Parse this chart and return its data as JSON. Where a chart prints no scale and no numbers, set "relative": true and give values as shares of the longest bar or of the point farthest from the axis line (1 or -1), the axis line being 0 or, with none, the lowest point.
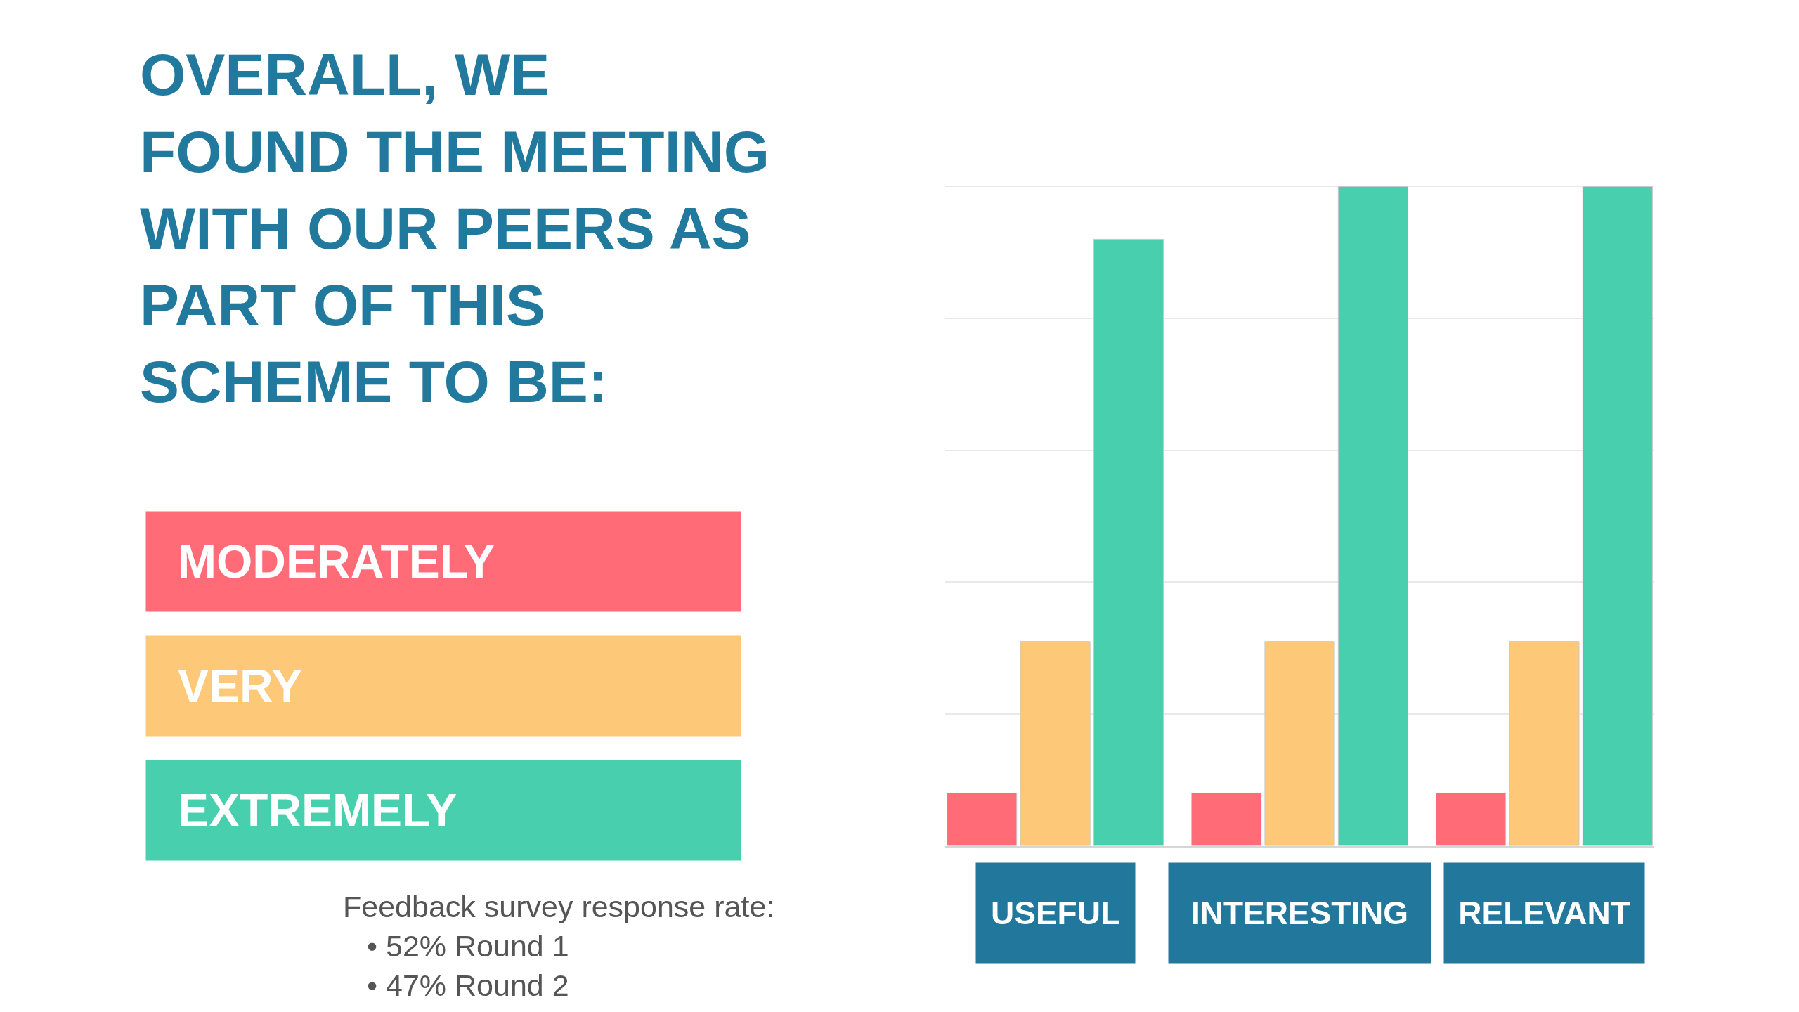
{
  "chart_data": {
    "type": "bar",
    "title": "OVERALL, WE\nFOUND THE MEETING\nWITH OUR PEERS AS\nPART OF THIS\nSCHEME TO BE:",
    "categories": [
      "USEFUL",
      "INTERESTING",
      "RELEVANT"
    ],
    "series": [
      {
        "name": "MODERATELY",
        "color": "#ff6b76",
        "values": [
          0.08,
          0.08,
          0.08
        ]
      },
      {
        "name": "VERY",
        "color": "#fdc978",
        "values": [
          0.31,
          0.31,
          0.31
        ]
      },
      {
        "name": "EXTREMELY",
        "color": "#48cfae",
        "values": [
          0.92,
          1,
          1
        ]
      }
    ],
    "relative": true,
    "grid": "y",
    "legend": "left",
    "tick_labels": "x",
    "annotations": [
      "Feedback survey response rate:",
      "• 52% Round 1",
      "• 47% Round 2"
    ]
  }
}
